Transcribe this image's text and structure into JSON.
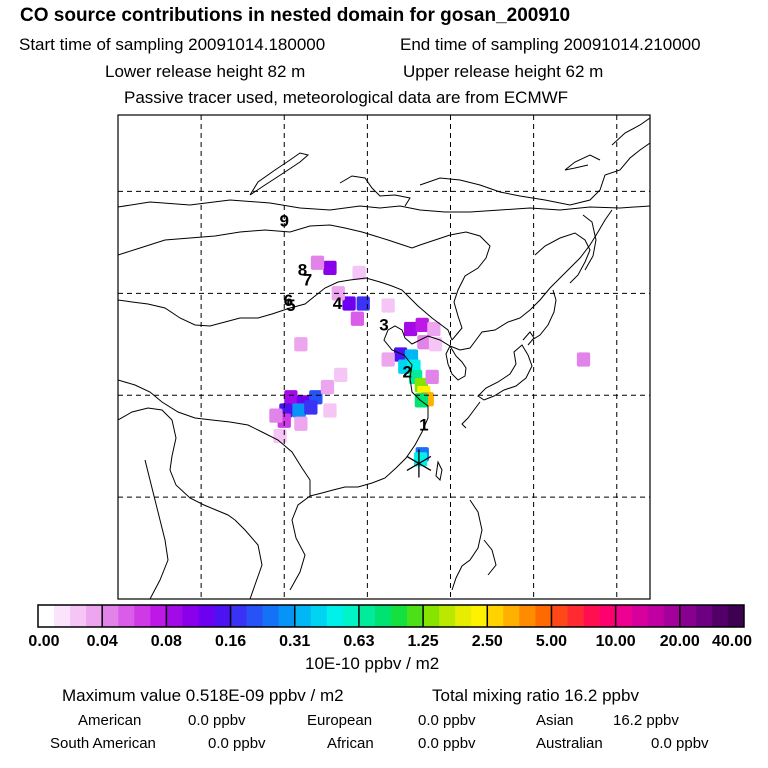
{
  "header": {
    "title": "CO  source contributions in nested domain for gosan_200910",
    "start_time": "Start time of sampling 20091014.180000",
    "end_time": "End time of sampling 20091014.210000",
    "lower_release": "Lower release height   82 m",
    "upper_release": "Upper release height   62 m",
    "note": "Passive tracer used, meteorological data are from ECMWF"
  },
  "chart_data": {
    "type": "heatmap",
    "title": "CO  source contributions in nested domain for gosan_200910",
    "units": "10E-10 ppbv / m2",
    "colorbar": {
      "tick_labels": [
        "0.00",
        "0.04",
        "0.08",
        "0.16",
        "0.31",
        "0.63",
        "1.25",
        "2.50",
        "5.00",
        "10.00",
        "20.00",
        "40.00"
      ],
      "colors": [
        "#ffffff",
        "#fbe3fb",
        "#f5c6f5",
        "#eca5ee",
        "#e283ea",
        "#d95de8",
        "#cd3ae6",
        "#bd18e8",
        "#a30ae8",
        "#8a00ea",
        "#6d00f0",
        "#4d12f2",
        "#3a32f4",
        "#2652f6",
        "#1472f6",
        "#0894f6",
        "#00b6f4",
        "#00d4f0",
        "#00f0ea",
        "#00f4c8",
        "#00ec9c",
        "#00e272",
        "#14e040",
        "#4ce018",
        "#86e400",
        "#bae800",
        "#e8ec00",
        "#fff200",
        "#ffd200",
        "#ffb000",
        "#ff8c00",
        "#ff6a00",
        "#ff4818",
        "#ff2a32",
        "#ff0f50",
        "#ff0070",
        "#ee0090",
        "#d8009c",
        "#c000a0",
        "#a4009c",
        "#880090",
        "#6c0080",
        "#520068",
        "#3e0050"
      ]
    },
    "trajectory_points": [
      {
        "label": "1",
        "lon": 126.8,
        "lat": 37.0
      },
      {
        "label": "2",
        "lon": 124.8,
        "lat": 42.2
      },
      {
        "label": "3",
        "lon": 122.0,
        "lat": 46.8
      },
      {
        "label": "4",
        "lon": 116.4,
        "lat": 48.9
      },
      {
        "label": "5",
        "lon": 110.8,
        "lat": 48.7
      },
      {
        "label": "6",
        "lon": 110.5,
        "lat": 49.2
      },
      {
        "label": "7",
        "lon": 112.8,
        "lat": 51.2
      },
      {
        "label": "8",
        "lon": 112.2,
        "lat": 52.2
      },
      {
        "label": "9",
        "lon": 110.0,
        "lat": 57.0
      }
    ],
    "receptor": {
      "name": "gosan",
      "lon": 126.2,
      "lat": 33.3
    },
    "plume_cells": [
      {
        "lon": 115.5,
        "lat": 52.5,
        "level": 9
      },
      {
        "lon": 114.0,
        "lat": 53.0,
        "level": 4
      },
      {
        "lon": 119.0,
        "lat": 52.0,
        "level": 2
      },
      {
        "lon": 117.8,
        "lat": 49.0,
        "level": 10
      },
      {
        "lon": 119.5,
        "lat": 49.0,
        "level": 12
      },
      {
        "lon": 116.5,
        "lat": 50.0,
        "level": 3
      },
      {
        "lon": 118.8,
        "lat": 47.5,
        "level": 5
      },
      {
        "lon": 122.5,
        "lat": 48.8,
        "level": 2
      },
      {
        "lon": 125.2,
        "lat": 46.5,
        "level": 8
      },
      {
        "lon": 126.6,
        "lat": 46.9,
        "level": 7
      },
      {
        "lon": 128.0,
        "lat": 46.5,
        "level": 3
      },
      {
        "lon": 126.8,
        "lat": 45.2,
        "level": 4
      },
      {
        "lon": 128.2,
        "lat": 45.0,
        "level": 2
      },
      {
        "lon": 124.0,
        "lat": 44.0,
        "level": 11
      },
      {
        "lon": 125.3,
        "lat": 43.8,
        "level": 16
      },
      {
        "lon": 124.5,
        "lat": 42.8,
        "level": 17
      },
      {
        "lon": 125.6,
        "lat": 42.8,
        "level": 18
      },
      {
        "lon": 125.8,
        "lat": 41.8,
        "level": 20
      },
      {
        "lon": 126.5,
        "lat": 41.0,
        "level": 24
      },
      {
        "lon": 126.8,
        "lat": 40.2,
        "level": 27
      },
      {
        "lon": 127.2,
        "lat": 39.6,
        "level": 29
      },
      {
        "lon": 126.5,
        "lat": 39.5,
        "level": 21
      },
      {
        "lon": 127.8,
        "lat": 41.8,
        "level": 4
      },
      {
        "lon": 122.5,
        "lat": 43.5,
        "level": 3
      },
      {
        "lon": 112.0,
        "lat": 45.0,
        "level": 3
      },
      {
        "lon": 116.8,
        "lat": 42.0,
        "level": 2
      },
      {
        "lon": 110.8,
        "lat": 39.8,
        "level": 8
      },
      {
        "lon": 112.3,
        "lat": 39.3,
        "level": 10
      },
      {
        "lon": 113.8,
        "lat": 39.8,
        "level": 13
      },
      {
        "lon": 110.2,
        "lat": 38.5,
        "level": 11
      },
      {
        "lon": 111.8,
        "lat": 38.5,
        "level": 15
      },
      {
        "lon": 113.2,
        "lat": 38.8,
        "level": 12
      },
      {
        "lon": 110.0,
        "lat": 37.5,
        "level": 6
      },
      {
        "lon": 109.0,
        "lat": 38.0,
        "level": 4
      },
      {
        "lon": 112.0,
        "lat": 37.2,
        "level": 3
      },
      {
        "lon": 115.5,
        "lat": 38.5,
        "level": 2
      },
      {
        "lon": 115.2,
        "lat": 40.8,
        "level": 3
      },
      {
        "lon": 109.5,
        "lat": 36.0,
        "level": 2
      },
      {
        "lon": 126.6,
        "lat": 34.2,
        "level": 14
      },
      {
        "lon": 126.4,
        "lat": 33.7,
        "level": 18
      },
      {
        "lon": 146.0,
        "lat": 43.5,
        "level": 4
      }
    ],
    "xlim_lon": [
      90,
      154
    ],
    "ylim_lat": [
      20,
      67.5
    ],
    "grid_lon": [
      100,
      110,
      120,
      130,
      140,
      150
    ],
    "grid_lat": [
      20,
      30,
      40,
      50,
      60
    ]
  },
  "stats": {
    "maximum": "Maximum value  0.518E-09 ppbv / m2",
    "total": "Total mixing ratio       16.2 ppbv",
    "american_label": "American",
    "american_value": "0.0 ppbv",
    "european_label": "European",
    "european_value": "0.0 ppbv",
    "asian_label": "Asian",
    "asian_value": "16.2 ppbv",
    "south_american_label": "South American",
    "south_american_value": "0.0 ppbv",
    "african_label": "African",
    "african_value": "0.0 ppbv",
    "australian_label": "Australian",
    "australian_value": "0.0 ppbv"
  },
  "colors": {
    "grid": "#000000",
    "coast": "#000000",
    "frame": "#000000"
  }
}
